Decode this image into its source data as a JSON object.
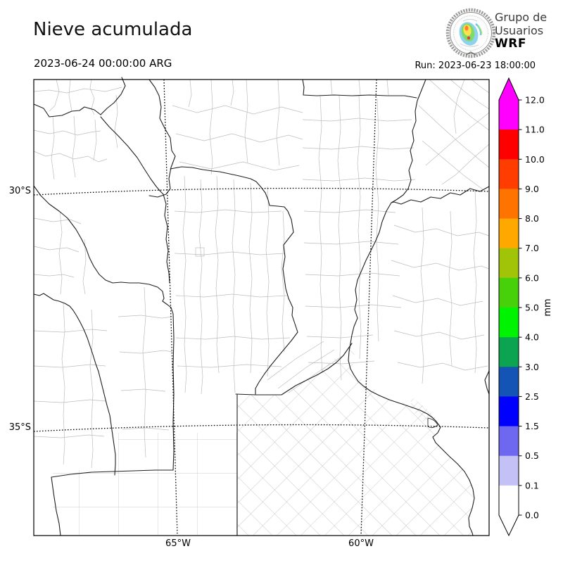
{
  "header": {
    "title": "Nieve acumulada",
    "valid_time": "2023-06-24 00:00:00 ARG",
    "run_label": "Run: 2023-06-23 18:00:00",
    "logo": {
      "line1": "Grupo de",
      "line2": "Usuarios",
      "line3": "WRF"
    }
  },
  "map": {
    "lat_tick_labels": [
      "30°S",
      "35°S"
    ],
    "lon_tick_labels": [
      "65°W",
      "60°W"
    ]
  },
  "colorbar": {
    "unit_label": "mm",
    "tick_labels": [
      "12.0",
      "11.0",
      "10.0",
      "9.0",
      "8.0",
      "7.0",
      "6.0",
      "5.0",
      "4.0",
      "3.0",
      "2.5",
      "1.5",
      "0.5",
      "0.1",
      "0.0"
    ],
    "segment_colors_top_to_bottom": [
      "#FF00FF",
      "#FF0000",
      "#FF3D00",
      "#FF7400",
      "#FFA800",
      "#A2C408",
      "#47D10A",
      "#00F300",
      "#0CA351",
      "#1354B5",
      "#0000FF",
      "#6E68F0",
      "#C3C1F6",
      "#FFFFFF"
    ],
    "extend_over_color": "#FF00FF",
    "extend_under_color": "#FFFFFF",
    "outline_color": "#000000"
  },
  "chart_data": {
    "type": "heatmap",
    "title": "Nieve acumulada",
    "valid_time": "2023-06-24 00:00:00 ARG",
    "run_time": "Run: 2023-06-23 18:00:00",
    "unit": "mm",
    "contour_levels": [
      0.0,
      0.1,
      0.5,
      1.5,
      2.5,
      3.0,
      4.0,
      5.0,
      6.0,
      7.0,
      8.0,
      9.0,
      10.0,
      11.0,
      12.0
    ],
    "x_tick_labels": [
      "65°W",
      "60°W"
    ],
    "y_tick_labels": [
      "30°S",
      "35°S"
    ],
    "legend_position": "right",
    "visible_field": "entire visible domain unshaded (accumulated snow below 0.1 mm everywhere)"
  }
}
